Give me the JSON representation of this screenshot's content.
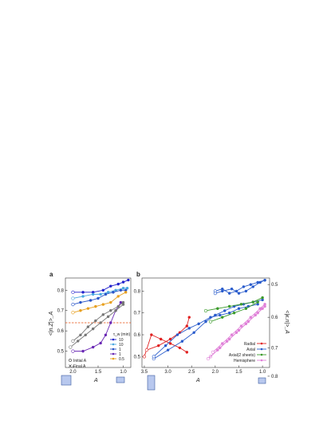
{
  "figure": {
    "title": ""
  },
  "colors": {
    "p10_dark": "#2222cc",
    "p10_light": "#4aa8e0",
    "p1_blue": "#2a55c8",
    "p1_purple": "#6a28b4",
    "p05_orange": "#e8a020",
    "gray": "#777777",
    "threshold": "#e85010",
    "radial": "#e02020",
    "axial": "#2a5ccc",
    "axial2": "#3a9a2a",
    "hemisphere": "#e080d8",
    "box_fill": "#b8c8ee",
    "box_stroke": "#3a5aa0"
  },
  "chart_data": [
    {
      "panel": "a",
      "type": "line",
      "xlabel": "A",
      "ylabel": "<|n.Z|>_A",
      "xlim": [
        2.15,
        0.85
      ],
      "ylim": [
        0.42,
        0.86
      ],
      "xticks": [
        {
          "v": 2.0,
          "label": "2.0"
        },
        {
          "v": 1.5,
          "label": "1.5"
        },
        {
          "v": 1.0,
          "label": "1.0"
        }
      ],
      "yticks": [
        {
          "v": 0.8,
          "label": "0.8"
        },
        {
          "v": 0.7,
          "label": "0.7"
        },
        {
          "v": 0.6,
          "label": "0.6"
        },
        {
          "v": 0.5,
          "label": "0.5"
        }
      ],
      "threshold": 0.64,
      "legend_title": "τ_w (min)",
      "legend_marker_labels": [
        "Initial A",
        "Final A"
      ],
      "series": [
        {
          "name": "10",
          "colorKey": "p10_dark",
          "x": [
            2.0,
            1.8,
            1.6,
            1.4,
            1.25,
            1.1,
            1.0,
            0.9
          ],
          "y": [
            0.79,
            0.79,
            0.79,
            0.8,
            0.82,
            0.83,
            0.84,
            0.85
          ]
        },
        {
          "name": "10",
          "colorKey": "p10_light",
          "x": [
            2.0,
            1.8,
            1.6,
            1.45,
            1.3,
            1.15,
            1.0,
            0.92
          ],
          "y": [
            0.76,
            0.77,
            0.78,
            0.78,
            0.79,
            0.8,
            0.81,
            0.81
          ]
        },
        {
          "name": "1",
          "colorKey": "p1_blue",
          "x": [
            2.0,
            1.85,
            1.65,
            1.5,
            1.35,
            1.2,
            1.05,
            0.95
          ],
          "y": [
            0.73,
            0.74,
            0.75,
            0.76,
            0.78,
            0.79,
            0.8,
            0.8
          ]
        },
        {
          "name": "1",
          "colorKey": "p1_purple",
          "x": [
            2.0,
            1.8,
            1.6,
            1.45,
            1.35,
            1.25,
            1.15,
            1.05
          ],
          "y": [
            0.5,
            0.5,
            0.52,
            0.54,
            0.58,
            0.64,
            0.7,
            0.74
          ]
        },
        {
          "name": "0.5",
          "colorKey": "p05_orange",
          "x": [
            2.0,
            1.85,
            1.7,
            1.55,
            1.4,
            1.25,
            1.1,
            0.95
          ],
          "y": [
            0.69,
            0.7,
            0.71,
            0.72,
            0.73,
            0.74,
            0.77,
            0.79
          ]
        },
        {
          "name": "",
          "colorKey": "gray",
          "x": [
            2.0,
            1.85,
            1.7,
            1.55,
            1.4,
            1.25,
            1.1,
            1.0
          ],
          "y": [
            0.55,
            0.58,
            0.62,
            0.65,
            0.68,
            0.7,
            0.72,
            0.74
          ]
        },
        {
          "name": "",
          "colorKey": "gray",
          "x": [
            2.05,
            1.9,
            1.75,
            1.6,
            1.45,
            1.3,
            1.15,
            1.0
          ],
          "y": [
            0.52,
            0.55,
            0.58,
            0.61,
            0.64,
            0.67,
            0.7,
            0.73
          ]
        }
      ]
    },
    {
      "panel": "b",
      "type": "line",
      "xlabel": "A",
      "ylabel_right": "<|κ.n|>_A",
      "xlim": [
        3.55,
        0.85
      ],
      "ylim": [
        0.45,
        0.86
      ],
      "xticks": [
        {
          "v": 3.5,
          "label": "3.5"
        },
        {
          "v": 3.0,
          "label": "3.0"
        },
        {
          "v": 2.5,
          "label": "2.5"
        },
        {
          "v": 2.0,
          "label": "2.0"
        },
        {
          "v": 1.5,
          "label": "1.5"
        },
        {
          "v": 1.0,
          "label": "1.0"
        }
      ],
      "yticks": [
        {
          "v": 0.8,
          "label": "0.8"
        },
        {
          "v": 0.7,
          "label": "0.7"
        },
        {
          "v": 0.6,
          "label": "0.6"
        },
        {
          "v": 0.5,
          "label": "0.5"
        }
      ],
      "yticks_right": [
        {
          "v": 0.83,
          "label": "0.5"
        },
        {
          "v": 0.68,
          "label": "0.6"
        },
        {
          "v": 0.54,
          "label": "0.7"
        },
        {
          "v": 0.41,
          "label": "0.8"
        }
      ],
      "series": [
        {
          "name": "Radial",
          "colorKey": "radial",
          "x": [
            3.5,
            3.35,
            3.15,
            2.95,
            2.75,
            2.6
          ],
          "y": [
            0.5,
            0.6,
            0.58,
            0.56,
            0.54,
            0.52
          ]
        },
        {
          "name": "Radial",
          "colorKey": "radial",
          "x": [
            3.45,
            3.2,
            2.95,
            2.75,
            2.6,
            2.55
          ],
          "y": [
            0.53,
            0.55,
            0.58,
            0.61,
            0.64,
            0.68
          ]
        },
        {
          "name": "Axial",
          "colorKey": "axial",
          "x": [
            3.3,
            3.0,
            2.7,
            2.45,
            2.2,
            2.0,
            1.8,
            1.6,
            1.4,
            1.2,
            1.0
          ],
          "y": [
            0.49,
            0.53,
            0.57,
            0.61,
            0.66,
            0.69,
            0.71,
            0.73,
            0.74,
            0.75,
            0.76
          ]
        },
        {
          "name": "Axial",
          "colorKey": "axial",
          "x": [
            3.3,
            3.05,
            2.8,
            2.55,
            2.35,
            2.1,
            1.9,
            1.7,
            1.5,
            1.3,
            1.1
          ],
          "y": [
            0.5,
            0.55,
            0.6,
            0.63,
            0.65,
            0.68,
            0.69,
            0.7,
            0.72,
            0.73,
            0.74
          ]
        },
        {
          "name": "Axial",
          "colorKey": "axial",
          "x": [
            2.0,
            1.85,
            1.7,
            1.55,
            1.4,
            1.25,
            1.1,
            0.95
          ],
          "y": [
            0.8,
            0.81,
            0.79,
            0.8,
            0.82,
            0.83,
            0.84,
            0.85
          ]
        },
        {
          "name": "Axial",
          "colorKey": "axial",
          "x": [
            2.0,
            1.85,
            1.65,
            1.5,
            1.35,
            1.2,
            1.05,
            0.95
          ],
          "y": [
            0.79,
            0.8,
            0.81,
            0.79,
            0.8,
            0.82,
            0.84,
            0.85
          ]
        },
        {
          "name": "Axial(2 sheets)",
          "colorKey": "axial2",
          "x": [
            2.2,
            1.95,
            1.7,
            1.45,
            1.2,
            1.0
          ],
          "y": [
            0.71,
            0.72,
            0.73,
            0.74,
            0.75,
            0.77
          ]
        },
        {
          "name": "Axial(2 sheets)",
          "colorKey": "axial2",
          "x": [
            2.1,
            1.85,
            1.6,
            1.35,
            1.1
          ],
          "y": [
            0.66,
            0.68,
            0.7,
            0.72,
            0.75
          ]
        },
        {
          "name": "Hemisphere",
          "colorKey": "hemisphere",
          "x": [
            2.1,
            1.9,
            1.7,
            1.5,
            1.3,
            1.1,
            0.95
          ],
          "y": [
            0.5,
            0.54,
            0.58,
            0.62,
            0.66,
            0.7,
            0.73
          ]
        },
        {
          "name": "Hemisphere",
          "colorKey": "hemisphere",
          "x": [
            2.05,
            1.85,
            1.65,
            1.45,
            1.25,
            1.05,
            0.95
          ],
          "y": [
            0.52,
            0.56,
            0.6,
            0.64,
            0.68,
            0.72,
            0.74
          ]
        },
        {
          "name": "Hemisphere",
          "colorKey": "hemisphere",
          "x": [
            2.15,
            1.95,
            1.75,
            1.55,
            1.35,
            1.15,
            1.0
          ],
          "y": [
            0.49,
            0.53,
            0.57,
            0.61,
            0.65,
            0.69,
            0.72
          ]
        }
      ],
      "legend": [
        {
          "label": "Radial",
          "colorKey": "radial"
        },
        {
          "label": "Axial",
          "colorKey": "axial"
        },
        {
          "label": "Axial(2 sheets)",
          "colorKey": "axial2"
        },
        {
          "label": "Hemisphere",
          "colorKey": "hemisphere"
        }
      ]
    }
  ]
}
